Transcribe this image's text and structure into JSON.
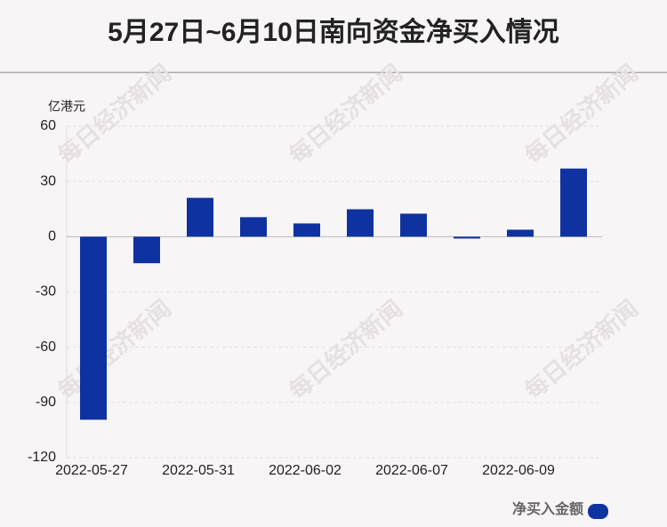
{
  "chart_data": {
    "type": "bar",
    "title": "5月27日~6月10日南向资金净买入情况",
    "y_label": "亿港元",
    "watermark": "每日经济新闻",
    "categories": [
      "2022-05-27",
      null,
      "2022-05-31",
      null,
      "2022-06-02",
      null,
      "2022-06-07",
      null,
      "2022-06-09",
      null
    ],
    "series": [
      {
        "name": "净买入金额",
        "color": "#0e33a0",
        "values": [
          -99.4,
          -14.4,
          21.1,
          10.6,
          7.2,
          14.9,
          12.5,
          -1,
          3.8,
          37.0
        ]
      }
    ],
    "ylim": [
      -120,
      60
    ],
    "yticks": [
      -120,
      -90,
      -60,
      -30,
      0,
      30,
      60
    ],
    "grid": true,
    "legend": "bottom-right"
  }
}
